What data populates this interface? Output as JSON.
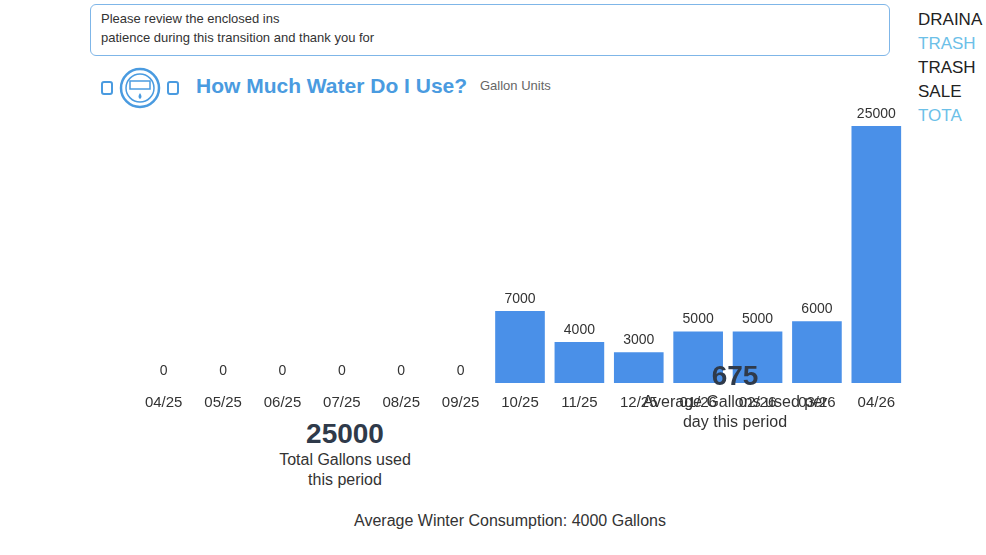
{
  "chart_data": {
    "type": "bar",
    "title": "How Much Water Do I Use?",
    "subtitle": "Gallon Units",
    "categories": [
      "04/25",
      "05/25",
      "06/25",
      "07/25",
      "08/25",
      "09/25",
      "10/25",
      "11/25",
      "12/25",
      "01/26",
      "02/26",
      "03/26",
      "04/26"
    ],
    "values": [
      0,
      0,
      0,
      0,
      0,
      0,
      7000,
      4000,
      3000,
      5000,
      5000,
      6000,
      25000
    ],
    "color": "#4a90e8",
    "ylim": [
      0,
      25000
    ],
    "grid": false,
    "data_labels": true,
    "tick_labels": "x"
  },
  "notice": [
    "Please review the enclosed ins",
    "patience during this transition and thank you for"
  ],
  "side_labels": [
    {
      "text": "DRAINA",
      "color": "#222222"
    },
    {
      "text": "TRASH",
      "color": "#6cc0e8"
    },
    {
      "text": "TRASH",
      "color": "#222222"
    },
    {
      "text": "SALE",
      "color": "#222222"
    },
    {
      "text": "TOTA",
      "color": "#6cc0e8"
    }
  ],
  "summary": [
    {
      "value": 25000,
      "label": "Total Gallons used this period"
    },
    {
      "value": 675,
      "label": "Average Gallons used per day this period"
    }
  ],
  "footer": "Average Winter Consumption: 4000 Gallons"
}
